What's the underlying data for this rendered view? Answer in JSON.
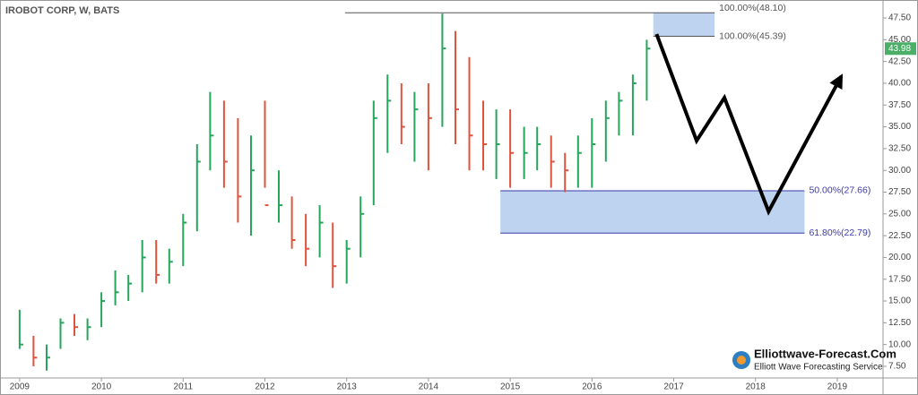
{
  "chart_data": {
    "type": "ohlc",
    "title": "IROBOT CORP, W, BATS",
    "x": [
      2009.0,
      2009.17,
      2009.33,
      2009.5,
      2009.67,
      2009.83,
      2010.0,
      2010.17,
      2010.33,
      2010.5,
      2010.67,
      2010.83,
      2011.0,
      2011.17,
      2011.33,
      2011.5,
      2011.67,
      2011.83,
      2012.0,
      2012.17,
      2012.33,
      2012.5,
      2012.67,
      2012.83,
      2013.0,
      2013.17,
      2013.33,
      2013.5,
      2013.67,
      2013.83,
      2014.0,
      2014.17,
      2014.33,
      2014.5,
      2014.67,
      2014.83,
      2015.0,
      2015.17,
      2015.33,
      2015.5,
      2015.67,
      2015.83,
      2016.0,
      2016.17,
      2016.33,
      2016.5,
      2016.67
    ],
    "high": [
      14,
      11,
      10,
      13,
      13.5,
      13,
      16,
      18.5,
      18,
      22,
      22,
      21,
      25,
      33,
      39,
      38,
      36,
      34,
      38,
      30,
      27,
      25,
      26,
      24,
      22,
      27,
      38,
      41,
      40,
      39,
      40,
      48,
      46,
      43,
      38,
      37,
      37,
      35,
      35,
      34,
      32,
      34,
      36,
      38,
      39,
      41,
      45
    ],
    "low": [
      9.5,
      7.5,
      7,
      9.5,
      11,
      10.5,
      12,
      14.5,
      15,
      16,
      17,
      17,
      19,
      23,
      30,
      28,
      24,
      22.5,
      28,
      24,
      21,
      19,
      20,
      16.5,
      17,
      20,
      26,
      32,
      33,
      31,
      30,
      35,
      33,
      30,
      30,
      29,
      28,
      29,
      30,
      28,
      27.5,
      28,
      28,
      31,
      34,
      34,
      38
    ],
    "close": [
      10,
      8.5,
      8.5,
      12.5,
      12,
      12,
      15,
      16,
      17,
      20,
      18,
      19.5,
      24,
      31,
      34,
      31,
      27,
      30,
      26,
      26,
      22,
      21,
      24,
      19,
      21,
      25,
      36,
      38,
      35,
      37,
      36,
      44,
      37,
      34,
      33,
      33,
      32,
      32,
      33,
      31,
      30,
      32,
      33,
      36,
      38,
      40,
      43.98
    ],
    "up_color": "#26a65b",
    "down_color": "#e0533d",
    "last_price": 43.98,
    "last_price_color": "#4caf68",
    "xlim": [
      2008.76,
      2019.56
    ],
    "xticks": [
      2009,
      2010,
      2011,
      2012,
      2013,
      2014,
      2015,
      2016,
      2017,
      2018,
      2019
    ],
    "ylim": [
      6.16,
      49.56
    ],
    "yticks": [
      {
        "value": 7.5,
        "label": "7.50"
      },
      {
        "value": 10,
        "label": "10.00"
      },
      {
        "value": 12.5,
        "label": "12.50"
      },
      {
        "value": 15,
        "label": "15.00"
      },
      {
        "value": 17.5,
        "label": "17.50"
      },
      {
        "value": 20,
        "label": "20.00"
      },
      {
        "value": 22.5,
        "label": "22.50"
      },
      {
        "value": 25,
        "label": "25.00"
      },
      {
        "value": 27.5,
        "label": "27.50"
      },
      {
        "value": 30,
        "label": "30.00"
      },
      {
        "value": 32.5,
        "label": "32.50"
      },
      {
        "value": 35,
        "label": "35.00"
      },
      {
        "value": 37.5,
        "label": "37.50"
      },
      {
        "value": 40,
        "label": "40.00"
      },
      {
        "value": 42.5,
        "label": "42.50"
      },
      {
        "value": 45,
        "label": "45.00"
      },
      {
        "value": 47.5,
        "label": "47.50"
      }
    ],
    "levels": [
      {
        "value": 48.1,
        "label": "100.00%(48.10)",
        "x": [
          2012.98,
          2017.5
        ],
        "color": "#555555"
      },
      {
        "value": 45.39,
        "label": "100.00%(45.39)",
        "x": [
          2016.75,
          2017.5
        ],
        "color": "#555555"
      },
      {
        "value": 27.66,
        "label": "50.00%(27.66)",
        "x": [
          2014.88,
          2018.6
        ],
        "color": "#3a3aa8"
      },
      {
        "value": 22.79,
        "label": "61.80%(22.79)",
        "x": [
          2014.88,
          2018.6
        ],
        "color": "#3a3aa8"
      }
    ],
    "zone_color": "#bdd3f0",
    "projection": {
      "x": [
        2016.79,
        2017.28,
        2017.62,
        2018.16,
        2019.05
      ],
      "y": [
        45.65,
        33.4,
        38.34,
        25.28,
        40.81
      ]
    },
    "logo": {
      "name": "Elliottwave-Forecast.Com",
      "tagline": "Elliott Wave Forecasting Service"
    }
  }
}
